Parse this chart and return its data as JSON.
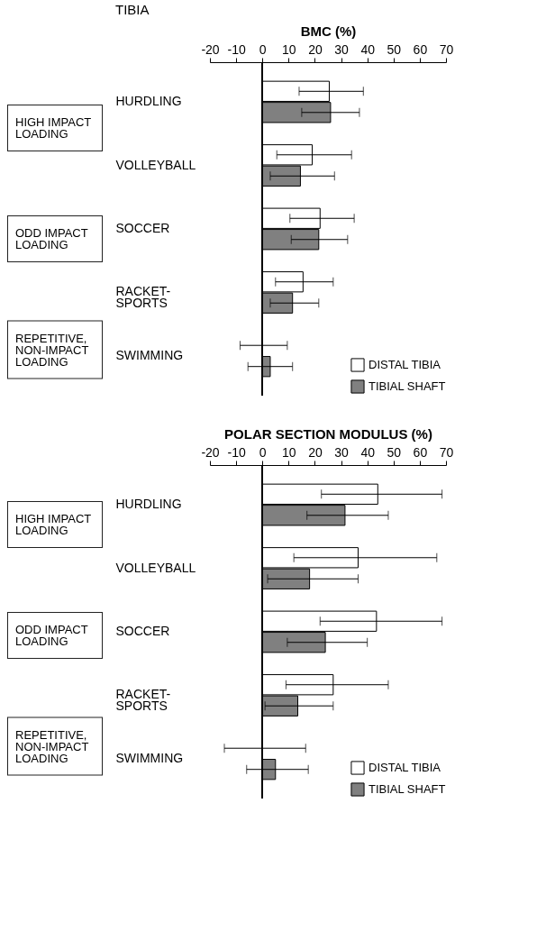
{
  "chart_data": [
    {
      "type": "bar",
      "title": "TIBIA",
      "xlabel": "BMC (%)",
      "orientation": "horizontal",
      "categories": [
        "HURDLING",
        "VOLLEYBALL",
        "SOCCER",
        "RACKET-SPORTS",
        "SWIMMING"
      ],
      "series": [
        {
          "name": "DISTAL TIBIA",
          "color": "#ffffff",
          "values": [
            25.5,
            19,
            22,
            15.5,
            0
          ],
          "errors": [
            [
              14,
              38.5
            ],
            [
              5.5,
              34
            ],
            [
              10.5,
              35
            ],
            [
              5,
              27
            ],
            [
              -8.5,
              9.5
            ]
          ]
        },
        {
          "name": "TIBIAL SHAFT",
          "color": "#808080",
          "values": [
            26,
            14.5,
            21.5,
            11.5,
            3
          ],
          "errors": [
            [
              15,
              37
            ],
            [
              3,
              27.5
            ],
            [
              11,
              32.5
            ],
            [
              3,
              21.5
            ],
            [
              -5.5,
              11.5
            ]
          ]
        }
      ],
      "xlim": [
        -20,
        70
      ],
      "xticks": [
        -20,
        -10,
        0,
        10,
        20,
        30,
        40,
        50,
        60,
        70
      ],
      "grid": false,
      "legend": "bottom right",
      "ref_lines": [
        {
          "axis": "x",
          "value": 0
        }
      ],
      "annotations": [
        "HIGH IMPACT LOADING",
        "ODD IMPACT LOADING",
        "REPETITIVE, NON-IMPACT LOADING"
      ]
    },
    {
      "type": "bar",
      "xlabel": "POLAR SECTION MODULUS (%)",
      "orientation": "horizontal",
      "categories": [
        "HURDLING",
        "VOLLEYBALL",
        "SOCCER",
        "RACKET-SPORTS",
        "SWIMMING"
      ],
      "series": [
        {
          "name": "DISTAL TIBIA",
          "color": "#ffffff",
          "values": [
            44,
            36.5,
            43.5,
            27,
            0
          ],
          "errors": [
            [
              22.5,
              68.5
            ],
            [
              12,
              66.5
            ],
            [
              22,
              68.5
            ],
            [
              9,
              48
            ],
            [
              -14.5,
              16.5
            ]
          ]
        },
        {
          "name": "TIBIAL SHAFT",
          "color": "#808080",
          "values": [
            31.5,
            18,
            24,
            13.5,
            5
          ],
          "errors": [
            [
              17,
              48
            ],
            [
              2,
              36.5
            ],
            [
              9.5,
              40
            ],
            [
              1,
              27
            ],
            [
              -6,
              17.5
            ]
          ]
        }
      ],
      "xlim": [
        -20,
        70
      ],
      "xticks": [
        -20,
        -10,
        0,
        10,
        20,
        30,
        40,
        50,
        60,
        70
      ],
      "grid": false,
      "legend": "bottom right",
      "ref_lines": [
        {
          "axis": "x",
          "value": 0
        }
      ],
      "annotations": [
        "HIGH IMPACT LOADING",
        "ODD IMPACT LOADING",
        "REPETITIVE, NON-IMPACT LOADING"
      ]
    }
  ]
}
